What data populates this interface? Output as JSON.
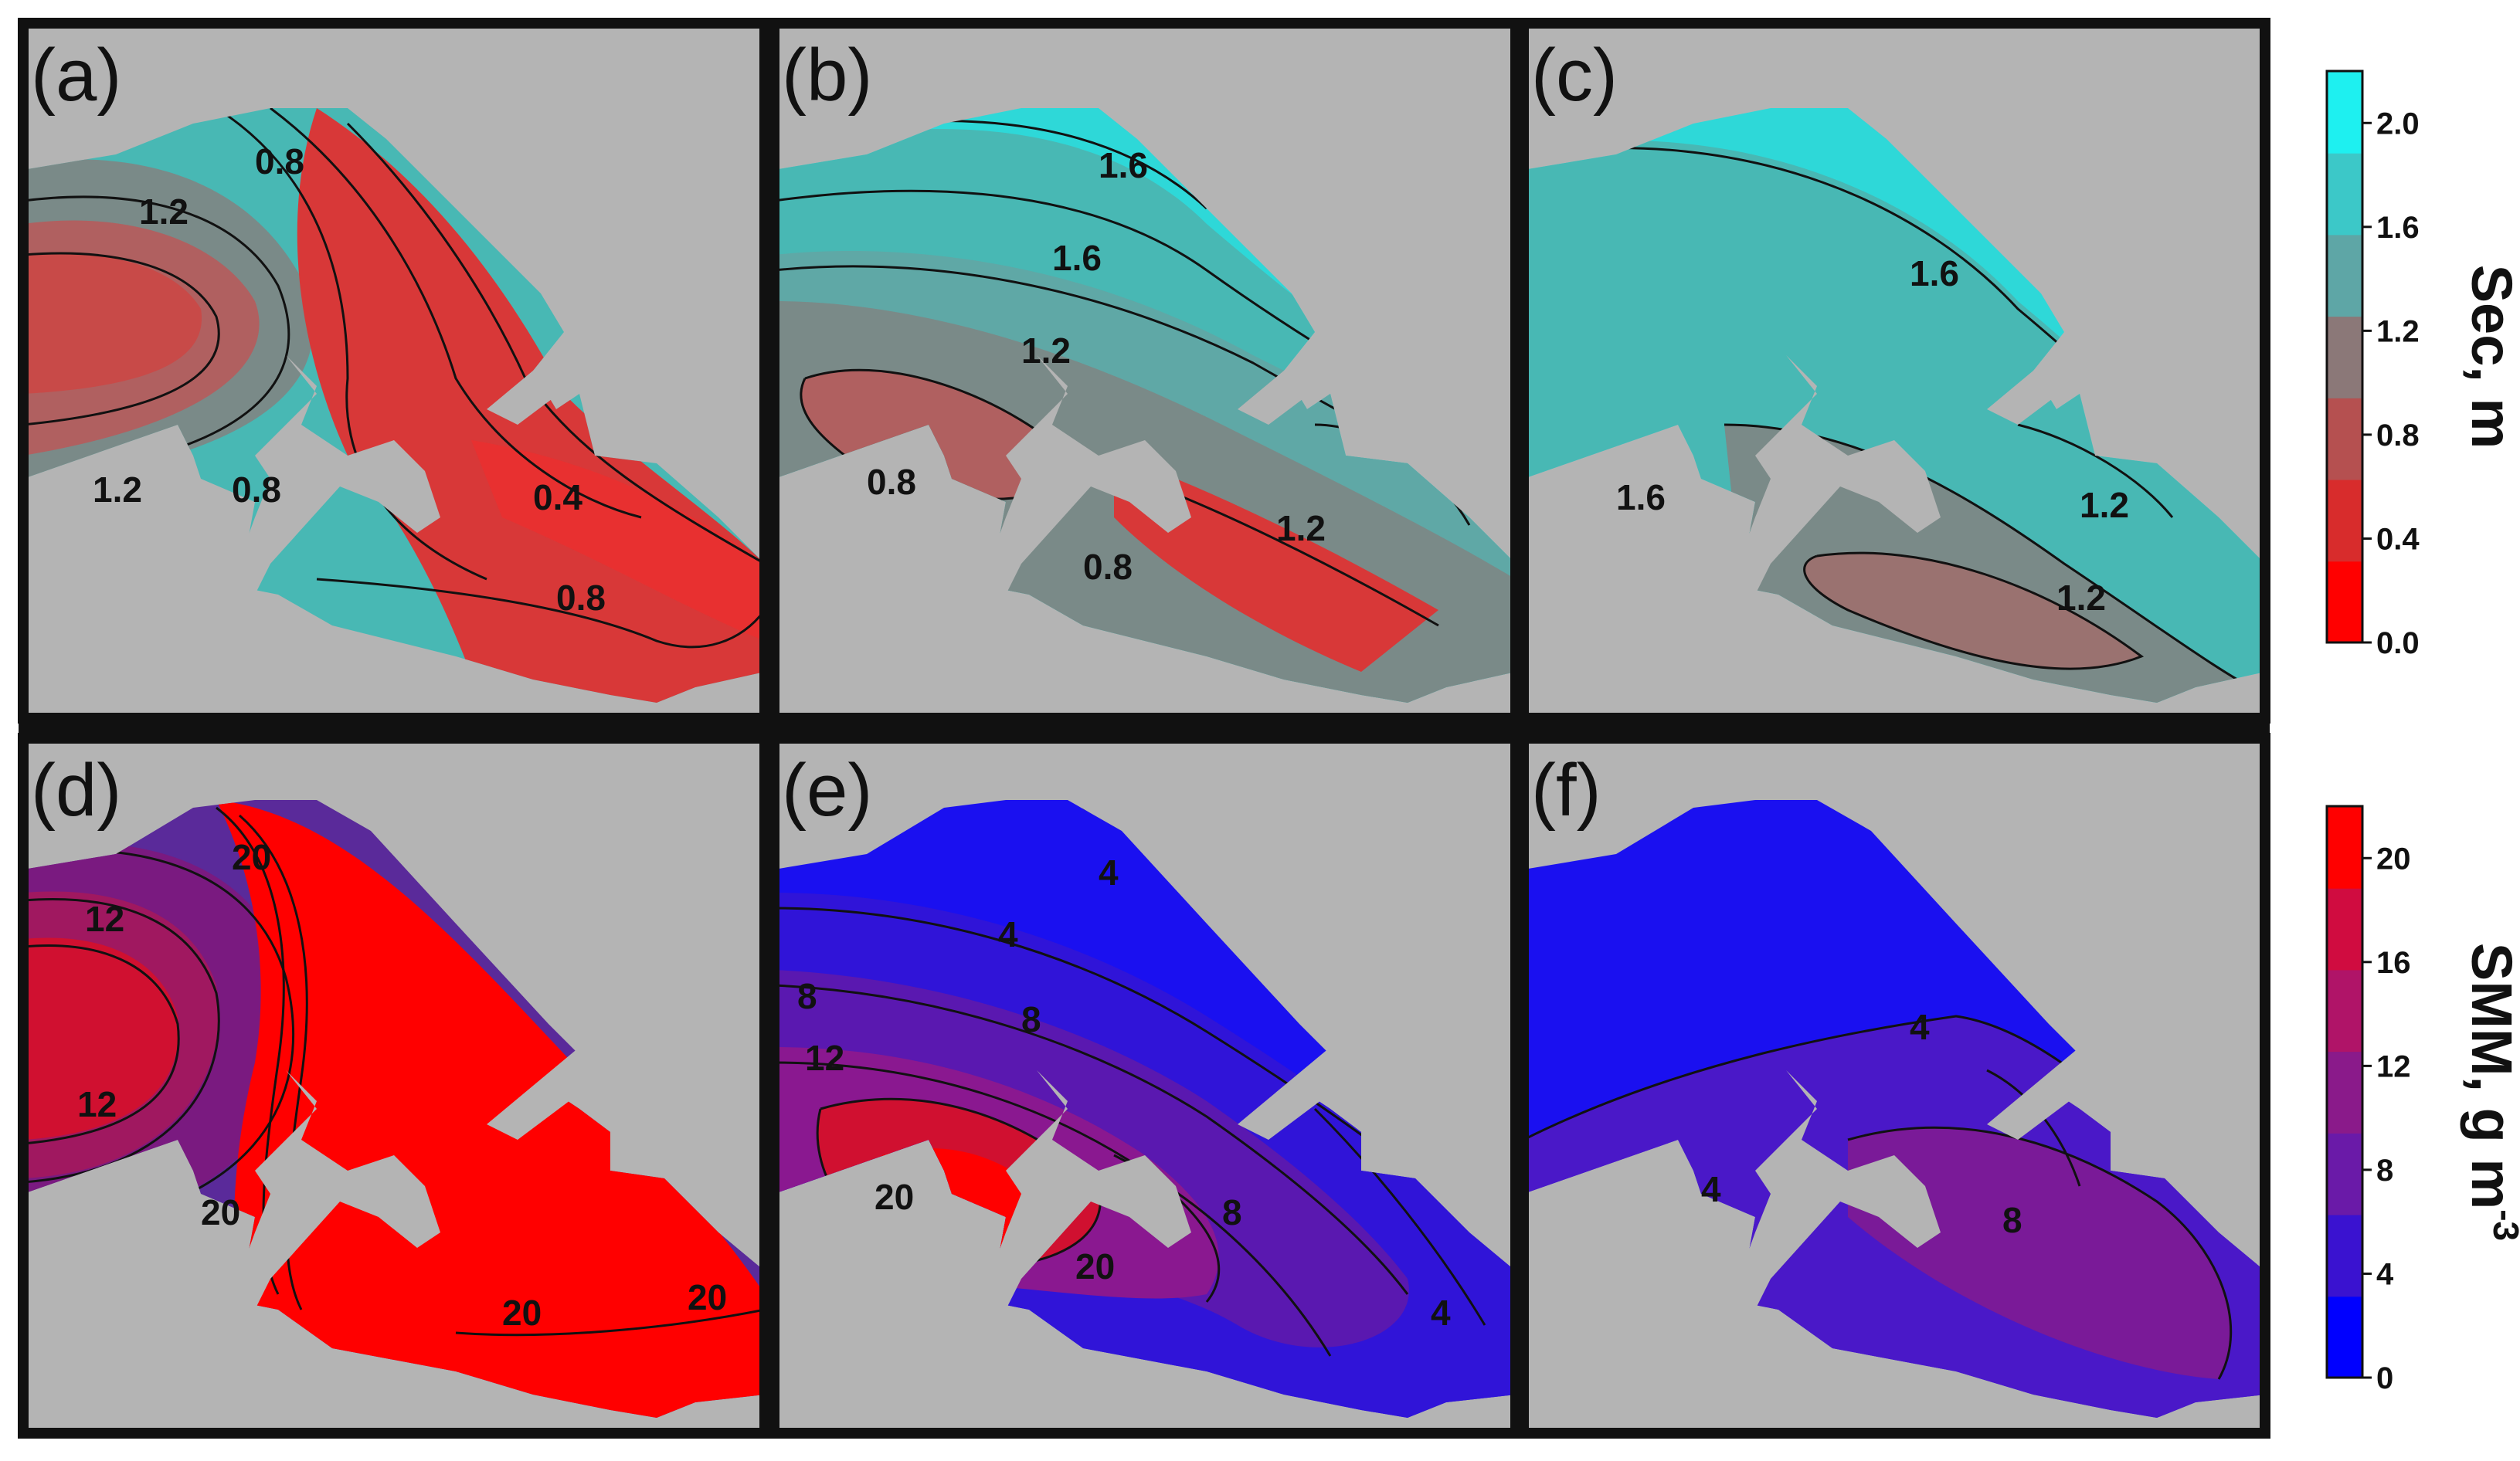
{
  "chart_data": [
    {
      "type": "heatmap",
      "panel": "(a)",
      "colorbar": "Sec, m",
      "contour_labels": [
        "0.8",
        "1.2",
        "1.2",
        "0.8",
        "0.4",
        "0.8"
      ],
      "fill_colors": [
        "#48b8b4",
        "#7a8a88",
        "#b06060",
        "#c84a48",
        "#d83838",
        "#e83030"
      ]
    },
    {
      "type": "heatmap",
      "panel": "(b)",
      "colorbar": "Sec, m",
      "contour_labels": [
        "1.6",
        "1.6",
        "1.2",
        "0.8",
        "1.2",
        "0.8"
      ],
      "fill_colors": [
        "#2ed8d8",
        "#48b8b4",
        "#5fa8a6",
        "#7a8a88",
        "#b06060",
        "#d83838"
      ]
    },
    {
      "type": "heatmap",
      "panel": "(c)",
      "colorbar": "Sec, m",
      "contour_labels": [
        "1.6",
        "1.6",
        "1.2",
        "1.2"
      ],
      "fill_colors": [
        "#2ed8d8",
        "#48b8b4",
        "#7a8a88",
        "#9a7270"
      ]
    },
    {
      "type": "heatmap",
      "panel": "(d)",
      "colorbar": "SMM, g m-3",
      "contour_labels": [
        "20",
        "12",
        "12",
        "20",
        "20",
        "20"
      ],
      "fill_colors": [
        "#5a2a9a",
        "#7a1a80",
        "#a01860",
        "#d01030",
        "#ff0000"
      ]
    },
    {
      "type": "heatmap",
      "panel": "(e)",
      "colorbar": "SMM, g m-3",
      "contour_labels": [
        "4",
        "4",
        "8",
        "8",
        "12",
        "20",
        "20",
        "8",
        "4"
      ],
      "fill_colors": [
        "#1a10f0",
        "#3014d8",
        "#5a18b0",
        "#8a1890",
        "#d01030",
        "#ff0000"
      ]
    },
    {
      "type": "heatmap",
      "panel": "(f)",
      "colorbar": "SMM, g m-3",
      "contour_labels": [
        "4",
        "4",
        "8"
      ],
      "fill_colors": [
        "#1a10f0",
        "#4a18c8",
        "#7a1a98"
      ]
    }
  ],
  "colorbars": {
    "sec": {
      "title": "Sec, m",
      "ticks": [
        "0.0",
        "0.4",
        "0.8",
        "1.2",
        "1.6",
        "2.0"
      ],
      "tick_values": [
        0.0,
        0.4,
        0.8,
        1.2,
        1.6,
        2.0
      ],
      "range": [
        0.0,
        2.2
      ],
      "colors": [
        "#ff0000",
        "#d82c2c",
        "#b55050",
        "#8b7878",
        "#5ea6a6",
        "#3cc8c8",
        "#1ef0f0"
      ]
    },
    "smm": {
      "title_main": "SMM, g m",
      "title_sup": "-3",
      "ticks": [
        "0",
        "4",
        "8",
        "12",
        "16",
        "20"
      ],
      "tick_values": [
        0,
        4,
        8,
        12,
        16,
        20
      ],
      "range": [
        0,
        22
      ],
      "colors": [
        "#0000ff",
        "#3a12d0",
        "#6a1aa8",
        "#8a1a8a",
        "#b01468",
        "#d00c40",
        "#ff0000"
      ]
    }
  },
  "colors": {
    "background_gray": "#b4b4b4",
    "frame": "#111111"
  }
}
